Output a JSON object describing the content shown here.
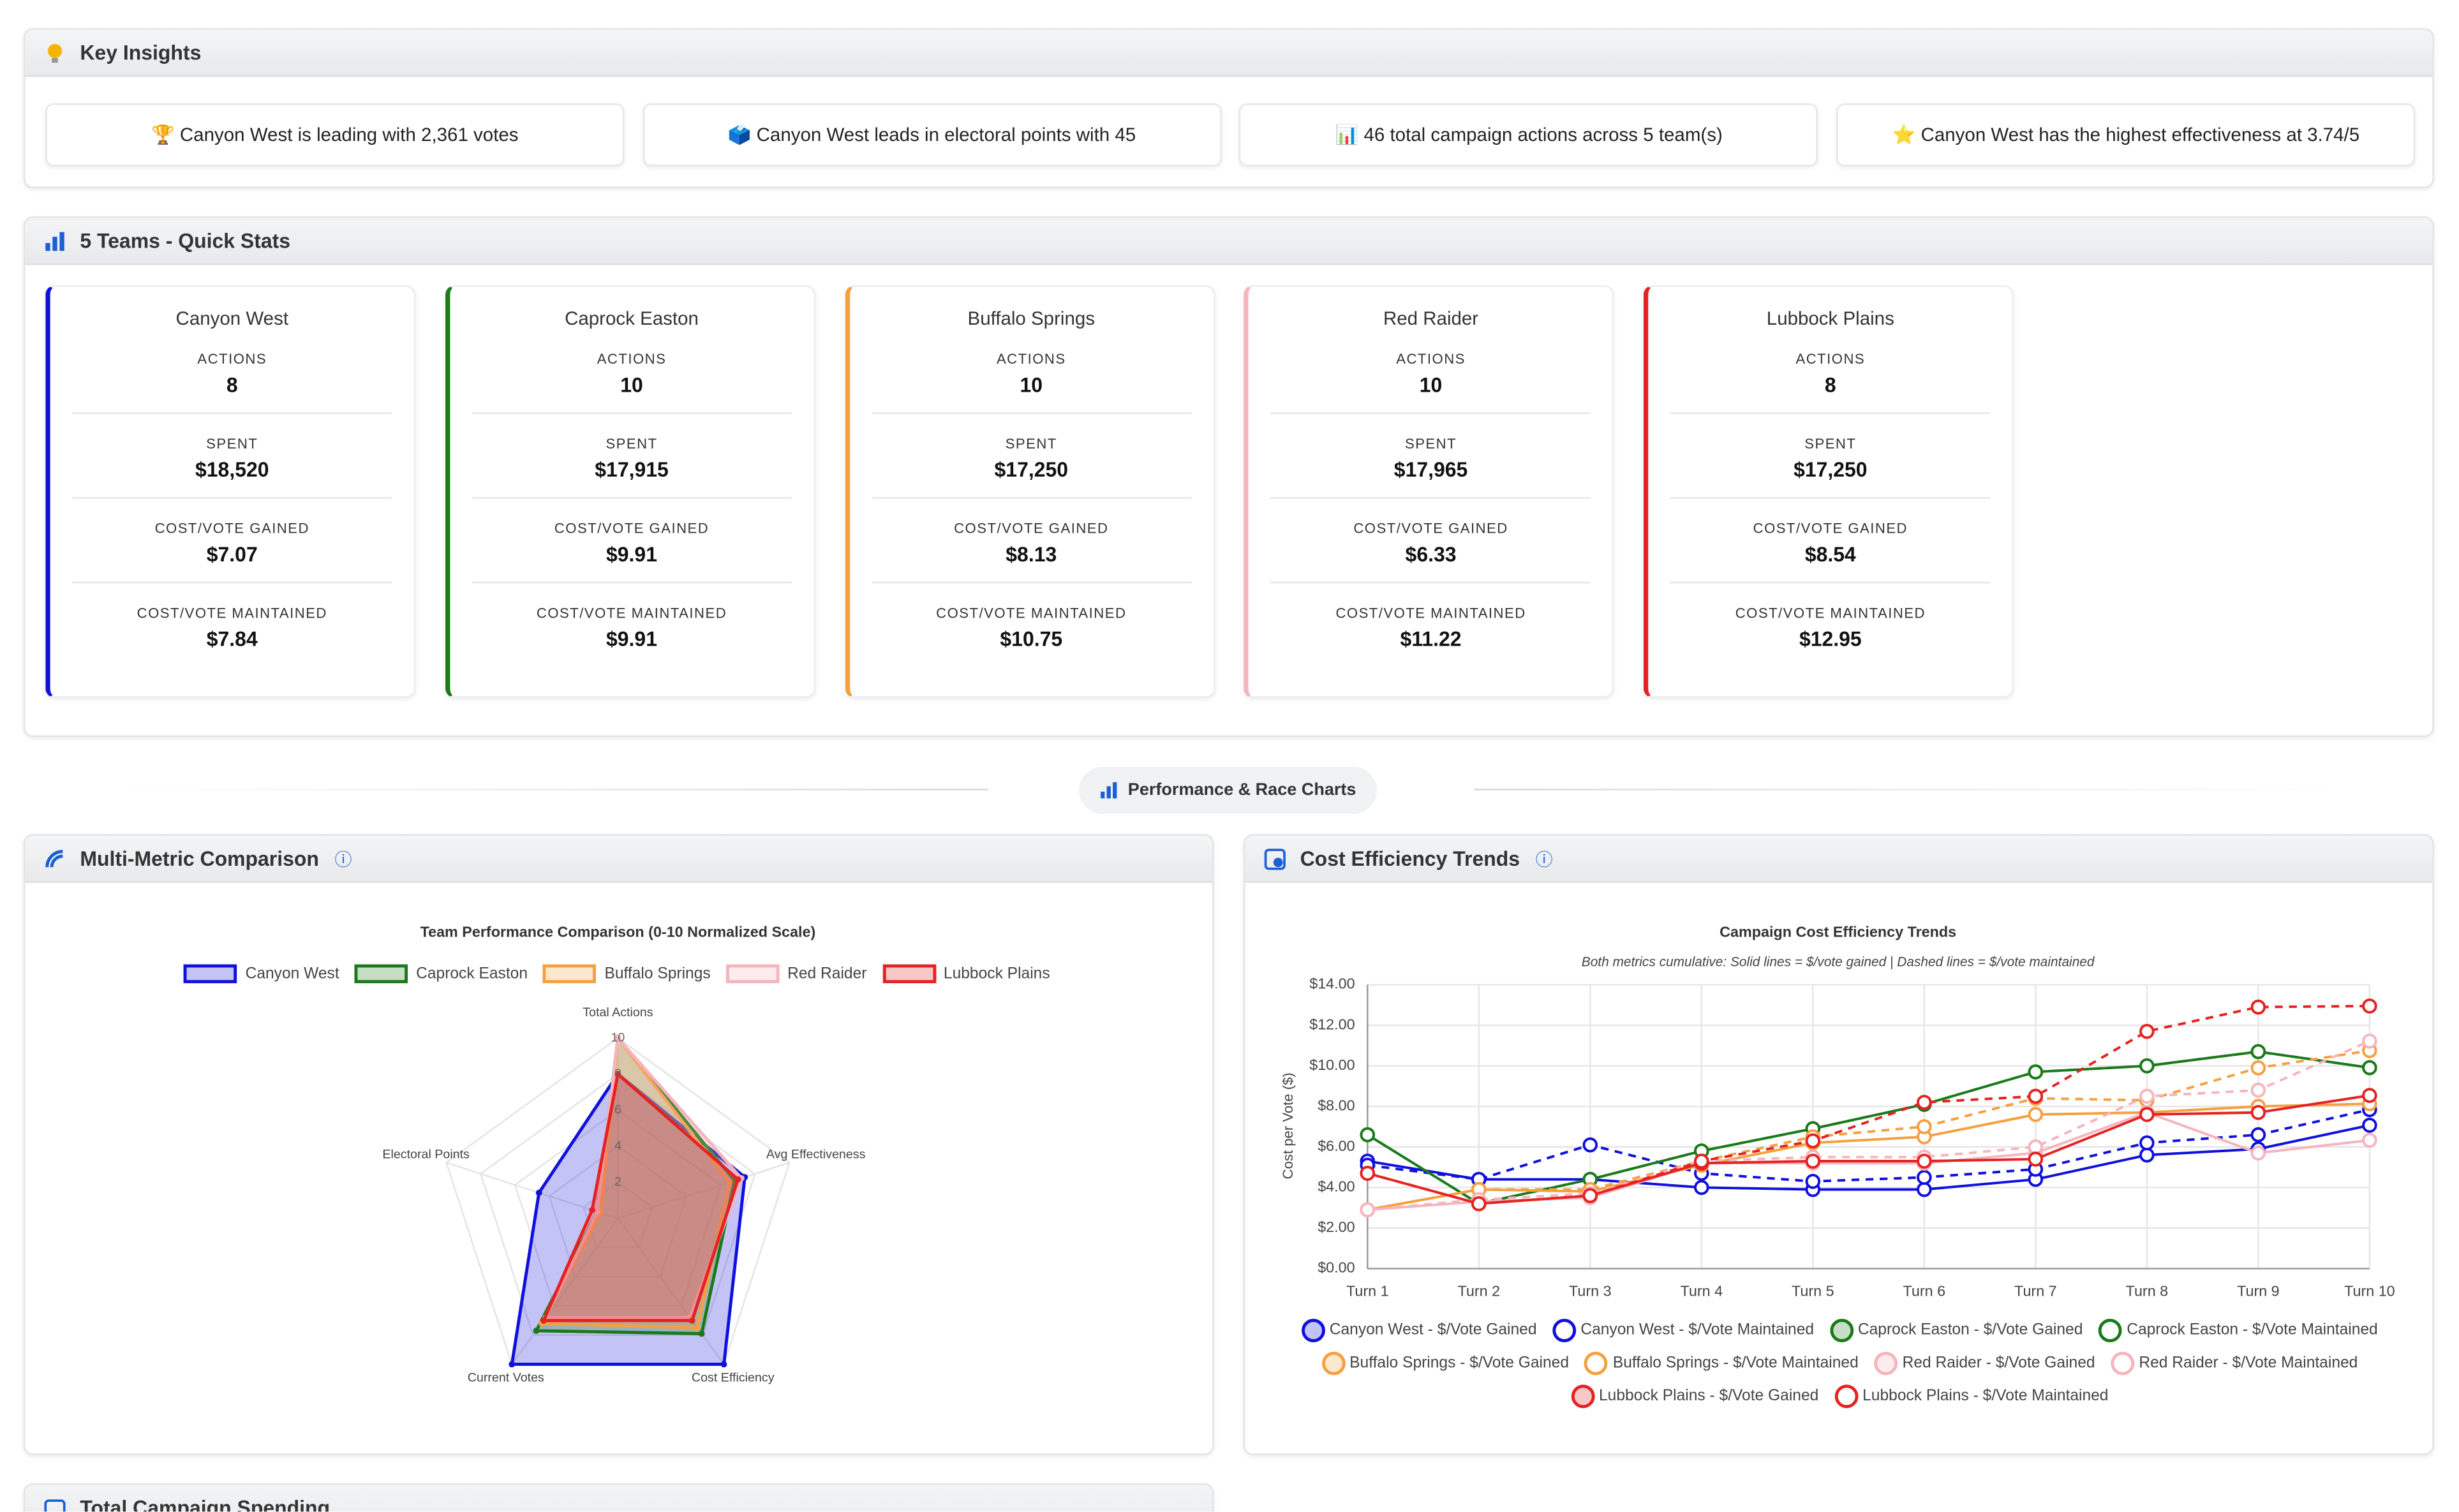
{
  "insights": {
    "title": "Key Insights",
    "items": [
      "🏆 Canyon West is leading with 2,361 votes",
      "🗳️ Canyon West leads in electoral points with 45",
      "📊 46 total campaign actions across 5 team(s)",
      "⭐ Canyon West has the highest effectiveness at 3.74/5"
    ]
  },
  "quick_stats": {
    "title": "5 Teams - Quick Stats",
    "labels": [
      "ACTIONS",
      "SPENT",
      "COST/VOTE GAINED",
      "COST/VOTE MAINTAINED"
    ],
    "teams": [
      {
        "name": "Canyon West",
        "color": "#1010dd",
        "stats": [
          8,
          "$18,520",
          "$7.07",
          "$7.84"
        ]
      },
      {
        "name": "Caprock Easton",
        "color": "#1a7a1a",
        "stats": [
          10,
          "$17,915",
          "$9.91",
          "$9.91"
        ]
      },
      {
        "name": "Buffalo Springs",
        "color": "#f5a040",
        "stats": [
          10,
          "$17,250",
          "$8.13",
          "$10.75"
        ]
      },
      {
        "name": "Red Raider",
        "color": "#f6b4bd",
        "stats": [
          10,
          "$17,965",
          "$6.33",
          "$11.22"
        ]
      },
      {
        "name": "Lubbock Plains",
        "color": "#e52222",
        "stats": [
          8,
          "$17,250",
          "$8.54",
          "$12.95"
        ]
      }
    ]
  },
  "section_divider": "Performance & Race Charts",
  "panels": [
    "Multi-Metric Comparison",
    "Cost Efficiency Trends",
    "Total Campaign Spending"
  ],
  "chart_data": [
    {
      "type": "radar",
      "title": "Team Performance Comparison (0-10 Normalized Scale)",
      "categories": [
        "Total Actions",
        "Avg Effectiveness",
        "Cost Efficiency",
        "Current Votes",
        "Electoral Points"
      ],
      "rlim": [
        0,
        10
      ],
      "rticks": [
        2,
        4,
        6,
        8,
        10
      ],
      "series": [
        {
          "name": "Canyon West",
          "color": "#1010dd",
          "values": [
            8,
            7.4,
            10,
            10,
            4.6
          ]
        },
        {
          "name": "Caprock Easton",
          "color": "#1a7a1a",
          "values": [
            10,
            6.8,
            7.9,
            7.7,
            1.2
          ]
        },
        {
          "name": "Buffalo Springs",
          "color": "#f5a040",
          "values": [
            10,
            6.5,
            7.5,
            7.2,
            1
          ]
        },
        {
          "name": "Red Raider",
          "color": "#f6b4bd",
          "values": [
            10,
            7.2,
            6.8,
            6.8,
            1.2
          ]
        },
        {
          "name": "Lubbock Plains",
          "color": "#e52222",
          "values": [
            8,
            7,
            7,
            7,
            1.5
          ]
        }
      ]
    },
    {
      "type": "line",
      "title": "Campaign Cost Efficiency Trends",
      "subtitle": "Both metrics cumulative: Solid lines = $/vote gained | Dashed lines = $/vote maintained",
      "y_label": "Cost per Vote ($)",
      "categories": [
        "Turn 1",
        "Turn 2",
        "Turn 3",
        "Turn 4",
        "Turn 5",
        "Turn 6",
        "Turn 7",
        "Turn 8",
        "Turn 9",
        "Turn 10"
      ],
      "ylim": [
        0,
        14
      ],
      "yticks": [
        {
          "value": 0,
          "label": "$0.00"
        },
        {
          "value": 2,
          "label": "$2.00"
        },
        {
          "value": 4,
          "label": "$4.00"
        },
        {
          "value": 6,
          "label": "$6.00"
        },
        {
          "value": 8,
          "label": "$8.00"
        },
        {
          "value": 10,
          "label": "$10.00"
        },
        {
          "value": 12,
          "label": "$12.00"
        },
        {
          "value": 14,
          "label": "$14.00"
        }
      ],
      "grid": true,
      "series": [
        {
          "name": "Canyon West - $/Vote Gained",
          "color": "#1010dd",
          "dashed": false,
          "values": [
            5.3,
            4.4,
            4.4,
            4.0,
            3.9,
            3.9,
            4.4,
            5.6,
            5.9,
            7.07
          ]
        },
        {
          "name": "Canyon West - $/Vote Maintained",
          "color": "#1010dd",
          "dashed": true,
          "values": [
            5.1,
            4.4,
            6.1,
            4.7,
            4.3,
            4.5,
            4.9,
            6.2,
            6.6,
            7.84
          ]
        },
        {
          "name": "Caprock Easton - $/Vote Gained",
          "color": "#1a7a1a",
          "dashed": false,
          "values": [
            6.6,
            3.2,
            4.4,
            5.8,
            6.9,
            8.1,
            9.7,
            10.0,
            10.7,
            9.91
          ]
        },
        {
          "name": "Caprock Easton - $/Vote Maintained",
          "color": "#1a7a1a",
          "dashed": true,
          "values": [
            6.6,
            3.2,
            4.4,
            5.8,
            6.9,
            8.1,
            9.7,
            10.0,
            10.7,
            9.91
          ]
        },
        {
          "name": "Buffalo Springs - $/Vote Gained",
          "color": "#f5a040",
          "dashed": false,
          "values": [
            2.9,
            3.9,
            3.8,
            5.1,
            6.2,
            6.5,
            7.6,
            7.7,
            8.0,
            8.13
          ]
        },
        {
          "name": "Buffalo Springs - $/Vote Maintained",
          "color": "#f5a040",
          "dashed": true,
          "values": [
            2.9,
            3.9,
            3.9,
            5.3,
            6.5,
            7.0,
            8.4,
            8.3,
            9.9,
            10.75
          ]
        },
        {
          "name": "Red Raider - $/Vote Gained",
          "color": "#f6b4bd",
          "dashed": false,
          "values": [
            2.9,
            3.3,
            3.5,
            5.2,
            5.2,
            5.2,
            5.7,
            7.7,
            5.7,
            6.33
          ]
        },
        {
          "name": "Red Raider - $/Vote Maintained",
          "color": "#f6b4bd",
          "dashed": true,
          "values": [
            2.9,
            3.4,
            3.7,
            5.3,
            5.5,
            5.5,
            6.0,
            8.5,
            8.8,
            11.22
          ]
        },
        {
          "name": "Lubbock Plains - $/Vote Gained",
          "color": "#e52222",
          "dashed": false,
          "values": [
            4.7,
            3.2,
            3.6,
            5.2,
            5.3,
            5.3,
            5.4,
            7.6,
            7.7,
            8.54
          ]
        },
        {
          "name": "Lubbock Plains - $/Vote Maintained",
          "color": "#e52222",
          "dashed": true,
          "values": [
            4.7,
            3.2,
            3.6,
            5.3,
            6.3,
            8.2,
            8.5,
            11.7,
            12.9,
            12.95
          ]
        }
      ]
    }
  ]
}
